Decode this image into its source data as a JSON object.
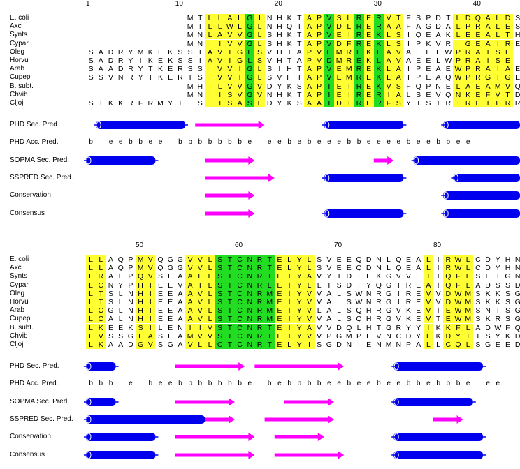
{
  "block1": {
    "ruler_ticks": [
      {
        "label": "1",
        "col": 0
      },
      {
        "label": "10",
        "col": 9
      },
      {
        "label": "20",
        "col": 19
      },
      {
        "label": "30",
        "col": 29
      },
      {
        "label": "40",
        "col": 39
      }
    ],
    "alignment": [
      {
        "name": "E. coli",
        "seq": "          MTLLALGINHKTAPVSLRERVTFSPDTLDQALDS"
      },
      {
        "name": "Axc",
        "seq": "          MTLLWLGLNHQTAPVDLRERAAFAGDALPRALES"
      },
      {
        "name": "Synts",
        "seq": "          MNLAVVGLSHKTAPVEIREKLSIQEAKLEEALTH"
      },
      {
        "name": "Cypar",
        "seq": "          MNIIVVGLSHKTAPVDFREKLSIPKVRIGEAIRE"
      },
      {
        "name": "Oleg",
        "seq": "SADRYMKEKSSIAVIGLSVHTAPVEMREKLAVAEELWPRAISE"
      },
      {
        "name": "Horvu",
        "seq": "SADRYIKEKSSIAVIGLSVHTAPVDMREKLAVAEELWPRAISE"
      },
      {
        "name": "Arab",
        "seq": "SAADRYTKERSSIVVIGLSIHTAPVEMREKLAIPEAEWPRAIAE"
      },
      {
        "name": "Cupep",
        "seq": "SSVNRYTKERISIVVIGLSVHTAPVEMREKLAIPEAQWPRGIGE"
      },
      {
        "name": "B. subt.",
        "seq": "          MHILVVGVDYKSAPIEIREKVSFQPNELAEAMVQ"
      },
      {
        "name": "Chvib",
        "seq": "          MNIISVGVNHKTAPIEIRERIALSEVQNKEFVTD"
      },
      {
        "name": "Cljoj",
        "seq": "SIKKRFRMYILSIISASLDYKSAAIDIRERFSYTSTRIREILRR"
      }
    ],
    "yellow_cols": [
      12,
      13,
      14,
      15,
      17,
      22,
      23,
      25,
      26,
      28,
      30,
      31,
      37,
      38,
      39,
      40,
      41,
      42
    ],
    "green_cols": [
      16,
      24,
      27,
      29
    ],
    "predictions": [
      {
        "label": "PHD Sec. Pred.",
        "kind": "track",
        "segments": [
          {
            "type": "helix",
            "start": 1,
            "end": 9
          },
          {
            "type": "strand",
            "start": 11,
            "end": 17
          },
          {
            "type": "helix",
            "start": 24,
            "end": 31
          },
          {
            "type": "helix",
            "start": 36,
            "end": 44
          }
        ]
      },
      {
        "label": "PHD Acc. Pred.",
        "kind": "acc",
        "text": "b eebbee bbbbbbbe eebebeeebbeeeebeebbee"
      },
      {
        "label": "SOPMA Sec. Pred.",
        "kind": "track",
        "segments": [
          {
            "type": "helix",
            "start": 0,
            "end": 6
          },
          {
            "type": "strand",
            "start": 12,
            "end": 16
          },
          {
            "type": "strand",
            "start": 29,
            "end": 30
          },
          {
            "type": "helix",
            "start": 33,
            "end": 44
          }
        ]
      },
      {
        "label": "SSPRED Sec. Pred.",
        "kind": "track",
        "segments": [
          {
            "type": "strand",
            "start": 12,
            "end": 18
          },
          {
            "type": "helix",
            "start": 24,
            "end": 31
          },
          {
            "type": "helix",
            "start": 37,
            "end": 44
          }
        ]
      },
      {
        "label": "Conservation",
        "kind": "track",
        "segments": [
          {
            "type": "strand",
            "start": 12,
            "end": 16
          },
          {
            "type": "helix",
            "start": 36,
            "end": 44
          }
        ]
      },
      {
        "label": "Consensus",
        "kind": "track",
        "segments": [
          {
            "type": "strand",
            "start": 12,
            "end": 16
          },
          {
            "type": "helix",
            "start": 24,
            "end": 31
          },
          {
            "type": "helix",
            "start": 36,
            "end": 44
          }
        ]
      }
    ]
  },
  "block2": {
    "ruler_ticks": [
      {
        "label": "50",
        "col": 5
      },
      {
        "label": "60",
        "col": 15
      },
      {
        "label": "70",
        "col": 25
      },
      {
        "label": "80",
        "col": 35
      }
    ],
    "alignment": [
      {
        "name": "E. coli",
        "seq": "LLAQPMVQGGVVLSTCNRTELYLSVEEQDNLQEALIRWLCDYHN"
      },
      {
        "name": "Axc",
        "seq": "LLAQPMVQGGVVLSTCNRTELYLSVEEQDNLQEALIRWLCDYHN"
      },
      {
        "name": "Synts",
        "seq": "LRALPQVSEAALLSTCNRTEIYAVYTDTEKGVVEITQFLSETGN"
      },
      {
        "name": "Cypar",
        "seq": "LCNYPHIEEVAILSTCNRLEIYLLTSDTYQGIREATQFLADSSD"
      },
      {
        "name": "Oleg",
        "seq": "LTSLNHIEEAAVLSTCNRMEIYVVALSWNRGIREVVDWMSKKSG"
      },
      {
        "name": "Horvu",
        "seq": "LTSLNHIEEAAVLSTCNRMEIYVVALSWNRGIREVVDWMSKKSG"
      },
      {
        "name": "Arab",
        "seq": "LCGLNHIEEAAVLSTCNRMEIYVLALSQHRGVKEVTEWMSNTSG"
      },
      {
        "name": "Cupep",
        "seq": "LCALNHIEEAAVLSTCNRMEIYVVALSQHRGVKEVTEWMSKRSG"
      },
      {
        "name": "B. subt.",
        "seq": "LKEEKSILENIIVSTCNRTEIYAVVDQLHTGRYYIKKFLADWFQ"
      },
      {
        "name": "Chvib",
        "seq": "LVSSGLASEAMVVSTCNRTEIYVVPGMPEVNCDYLKDYIISYKD"
      },
      {
        "name": "Cljoj",
        "seq": "LKAADGVSGAVLLCTCNRTELYISGDNIENMNPALLCQLSGEED"
      }
    ],
    "yellow_cols": [
      0,
      1,
      5,
      6,
      10,
      11,
      12,
      19,
      20,
      21,
      22,
      34,
      36,
      37,
      38
    ],
    "green_cols": [
      13,
      14,
      15,
      16,
      17,
      18
    ],
    "predictions": [
      {
        "label": "PHD Sec. Pred.",
        "kind": "track",
        "segments": [
          {
            "type": "helix",
            "start": 0,
            "end": 2
          },
          {
            "type": "strand",
            "start": 9,
            "end": 15
          },
          {
            "type": "strand",
            "start": 17,
            "end": 25
          },
          {
            "type": "helix",
            "start": 31,
            "end": 39
          }
        ]
      },
      {
        "label": "PHD Acc. Pred.",
        "kind": "acc",
        "text": "bbb e beebbbbbbbe bebbbbeebeebeebbebbbe ee"
      },
      {
        "label": "SOPMA Sec. Pred.",
        "kind": "track",
        "segments": [
          {
            "type": "helix",
            "start": 0,
            "end": 2
          },
          {
            "type": "strand",
            "start": 9,
            "end": 14
          },
          {
            "type": "strand",
            "start": 20,
            "end": 24
          },
          {
            "type": "helix",
            "start": 31,
            "end": 38
          }
        ]
      },
      {
        "label": "SSPRED Sec. Pred.",
        "kind": "track",
        "segments": [
          {
            "type": "helix",
            "start": 0,
            "end": 11
          },
          {
            "type": "strand",
            "start": 12,
            "end": 14
          },
          {
            "type": "strand",
            "start": 18,
            "end": 24
          },
          {
            "type": "strand",
            "start": 35,
            "end": 37
          }
        ]
      },
      {
        "label": "Conservation",
        "kind": "track",
        "segments": [
          {
            "type": "helix",
            "start": 0,
            "end": 6
          },
          {
            "type": "strand",
            "start": 9,
            "end": 16
          },
          {
            "type": "strand",
            "start": 19,
            "end": 23
          },
          {
            "type": "helix",
            "start": 31,
            "end": 39
          }
        ]
      },
      {
        "label": "Consensus",
        "kind": "track",
        "segments": [
          {
            "type": "helix",
            "start": 0,
            "end": 6
          },
          {
            "type": "strand",
            "start": 9,
            "end": 16
          },
          {
            "type": "strand",
            "start": 19,
            "end": 25
          },
          {
            "type": "helix",
            "start": 31,
            "end": 39
          }
        ]
      }
    ]
  },
  "colors": {
    "helix": "#0000ee",
    "strand": "#ff00ff",
    "conserved": "#ffff33",
    "identical": "#22dd22"
  }
}
